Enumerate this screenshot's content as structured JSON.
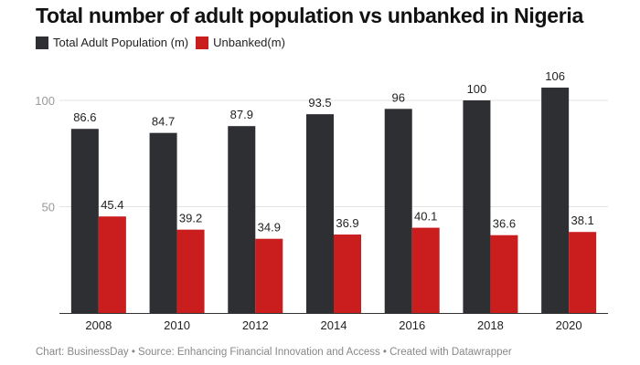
{
  "chart_data": {
    "type": "bar",
    "title": "Total number of adult population vs unbanked in Nigeria",
    "categories": [
      "2008",
      "2010",
      "2012",
      "2014",
      "2016",
      "2018",
      "2020"
    ],
    "series": [
      {
        "name": "Total Adult Population (m)",
        "color": "#2e2f33",
        "values": [
          86.6,
          84.7,
          87.9,
          93.5,
          96,
          100,
          106
        ],
        "labels": [
          "86.6",
          "84.7",
          "87.9",
          "93.5",
          "96",
          "100",
          "106"
        ]
      },
      {
        "name": "Unbanked(m)",
        "color": "#c91d1e",
        "values": [
          45.4,
          39.2,
          34.9,
          36.9,
          40.1,
          36.6,
          38.1
        ],
        "labels": [
          "45.4",
          "39.2",
          "34.9",
          "36.9",
          "40.1",
          "36.6",
          "38.1"
        ]
      }
    ],
    "yticks": [
      50,
      100
    ],
    "ylim": [
      0,
      110
    ],
    "grid": true,
    "legend": "top-left",
    "xlabel": "",
    "ylabel": ""
  },
  "footer": "Chart: BusinessDay • Source: Enhancing Financial Innovation and Access • Created with Datawrapper"
}
